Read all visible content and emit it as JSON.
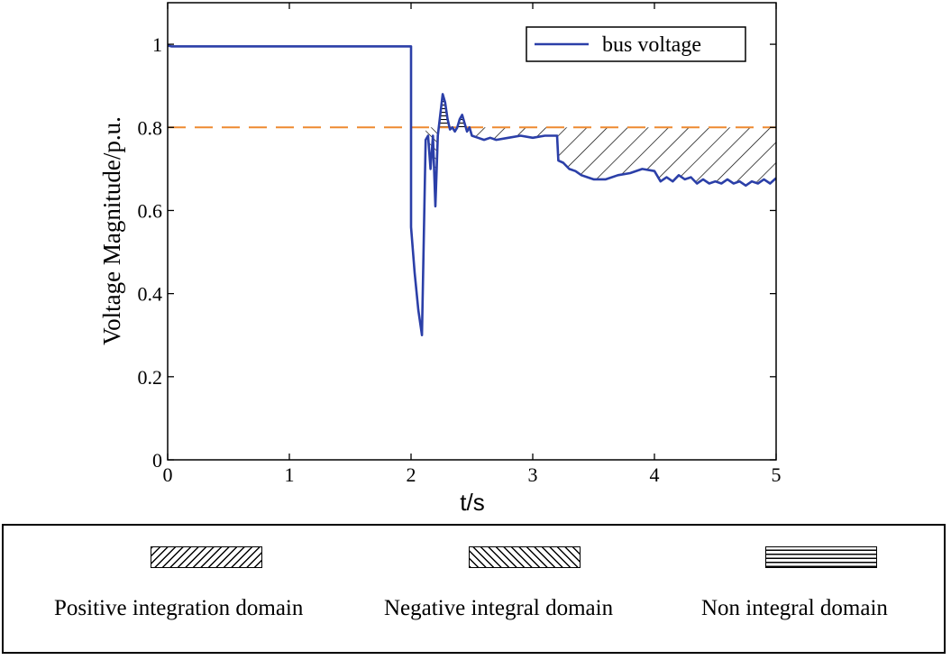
{
  "chart_data": {
    "type": "line",
    "title": "",
    "xlabel": "t/s",
    "ylabel": "Voltage Magnitude/p.u.",
    "xlim": [
      0,
      5
    ],
    "ylim": [
      0,
      1.1
    ],
    "xticks": [
      0,
      1,
      2,
      3,
      4,
      5
    ],
    "yticks": [
      0,
      0.2,
      0.4,
      0.6,
      0.8,
      1
    ],
    "xtick_labels": [
      "0",
      "1",
      "2",
      "3",
      "4",
      "5"
    ],
    "ytick_labels": [
      "0",
      "0.2",
      "0.4",
      "0.6",
      "0.8",
      "1"
    ],
    "grid": false,
    "legend": {
      "position": "top-right",
      "entries": [
        "bus voltage"
      ]
    },
    "threshold": {
      "y": 0.8,
      "color": "#ee8a30",
      "style": "dashed"
    },
    "series": [
      {
        "name": "bus voltage",
        "color": "#2b3fa8",
        "x": [
          0,
          0.03,
          1.99,
          2.0,
          2.0,
          2.03,
          2.06,
          2.09,
          2.12,
          2.14,
          2.16,
          2.18,
          2.2,
          2.22,
          2.24,
          2.26,
          2.28,
          2.3,
          2.32,
          2.34,
          2.36,
          2.38,
          2.4,
          2.42,
          2.44,
          2.46,
          2.48,
          2.5,
          2.55,
          2.6,
          2.65,
          2.7,
          2.8,
          2.9,
          3.0,
          3.1,
          3.2,
          3.21,
          3.25,
          3.3,
          3.35,
          3.4,
          3.45,
          3.5,
          3.6,
          3.7,
          3.8,
          3.9,
          4.0,
          4.05,
          4.1,
          4.15,
          4.2,
          4.25,
          4.3,
          4.35,
          4.4,
          4.45,
          4.5,
          4.55,
          4.6,
          4.65,
          4.7,
          4.75,
          4.8,
          4.85,
          4.9,
          4.95,
          5.0
        ],
        "y": [
          0.997,
          0.995,
          0.995,
          0.995,
          0.56,
          0.45,
          0.36,
          0.3,
          0.77,
          0.78,
          0.7,
          0.78,
          0.61,
          0.78,
          0.83,
          0.88,
          0.86,
          0.82,
          0.795,
          0.8,
          0.79,
          0.8,
          0.82,
          0.83,
          0.81,
          0.79,
          0.8,
          0.78,
          0.775,
          0.77,
          0.775,
          0.77,
          0.775,
          0.78,
          0.775,
          0.78,
          0.78,
          0.72,
          0.715,
          0.7,
          0.695,
          0.685,
          0.68,
          0.675,
          0.675,
          0.685,
          0.69,
          0.7,
          0.695,
          0.67,
          0.68,
          0.67,
          0.685,
          0.675,
          0.68,
          0.665,
          0.675,
          0.665,
          0.67,
          0.665,
          0.675,
          0.665,
          0.67,
          0.66,
          0.67,
          0.665,
          0.675,
          0.665,
          0.678
        ]
      }
    ]
  },
  "key": {
    "items": [
      {
        "label": "Positive integration domain",
        "pattern": "positive"
      },
      {
        "label": "Negative integral domain",
        "pattern": "negative"
      },
      {
        "label": "Non integral domain",
        "pattern": "non"
      }
    ]
  }
}
